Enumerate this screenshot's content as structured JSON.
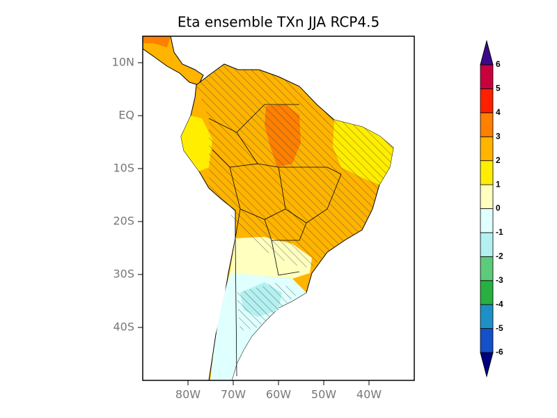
{
  "map": {
    "title": "Eta ensemble TXn JJA RCP4.5",
    "lat_range": [
      -50,
      15
    ],
    "lon_range": [
      -90,
      -30
    ],
    "lat_ticks": [
      {
        "value": 10,
        "label": "10N"
      },
      {
        "value": 0,
        "label": "EQ"
      },
      {
        "value": -10,
        "label": "10S"
      },
      {
        "value": -20,
        "label": "20S"
      },
      {
        "value": -30,
        "label": "30S"
      },
      {
        "value": -40,
        "label": "40S"
      }
    ],
    "lon_ticks": [
      {
        "value": -80,
        "label": "80W"
      },
      {
        "value": -70,
        "label": "70W"
      },
      {
        "value": -60,
        "label": "60W"
      },
      {
        "value": -50,
        "label": "50W"
      },
      {
        "value": -40,
        "label": "40W"
      }
    ],
    "colorbar": {
      "levels": [
        -6,
        -5,
        -4,
        -3,
        -2,
        -1,
        0,
        1,
        2,
        3,
        4,
        5,
        6
      ],
      "colors": [
        "#000080",
        "#1450c8",
        "#1e90c8",
        "#28b040",
        "#5ccc7a",
        "#b4f0f0",
        "#e0ffff",
        "#ffffc0",
        "#ffee00",
        "#ffb400",
        "#ff7f00",
        "#ff2000",
        "#c8003c",
        "#3b0a8c"
      ]
    }
  }
}
